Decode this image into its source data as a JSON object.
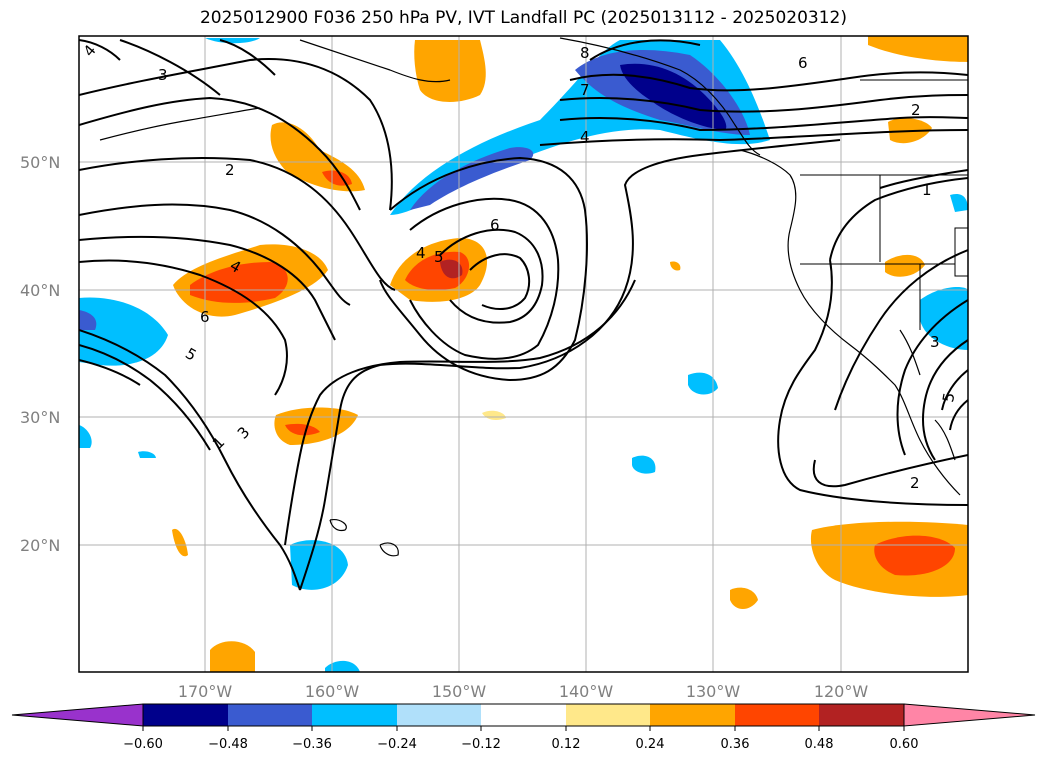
{
  "title": "2025012900 F036 250 hPa PV, IVT Landfall PC (2025013112 - 2025020312)",
  "map": {
    "lat_ticks": [
      "50°N",
      "40°N",
      "30°N",
      "20°N"
    ],
    "lon_ticks": [
      "170°W",
      "160°W",
      "150°W",
      "140°W",
      "130°W",
      "120°W"
    ],
    "gridlines": true
  },
  "colorbar": {
    "ticks": [
      "−0.60",
      "−0.48",
      "−0.36",
      "−0.24",
      "−0.12",
      "0.12",
      "0.24",
      "0.36",
      "0.48",
      "0.60"
    ],
    "colors": [
      "#9932cc",
      "#00008b",
      "#3a5bd0",
      "#00bfff",
      "#b0e0fa",
      "#ffffff",
      "#ffe88a",
      "#ffa500",
      "#ff4500",
      "#b22222",
      "#ff85a6"
    ],
    "extend": "both"
  },
  "contour_labels": [
    "4",
    "3",
    "2",
    "8",
    "7",
    "4",
    "6",
    "2",
    "1",
    "6",
    "4",
    "5",
    "4",
    "6",
    "5",
    "1",
    "3",
    "2",
    "3",
    "5"
  ]
}
